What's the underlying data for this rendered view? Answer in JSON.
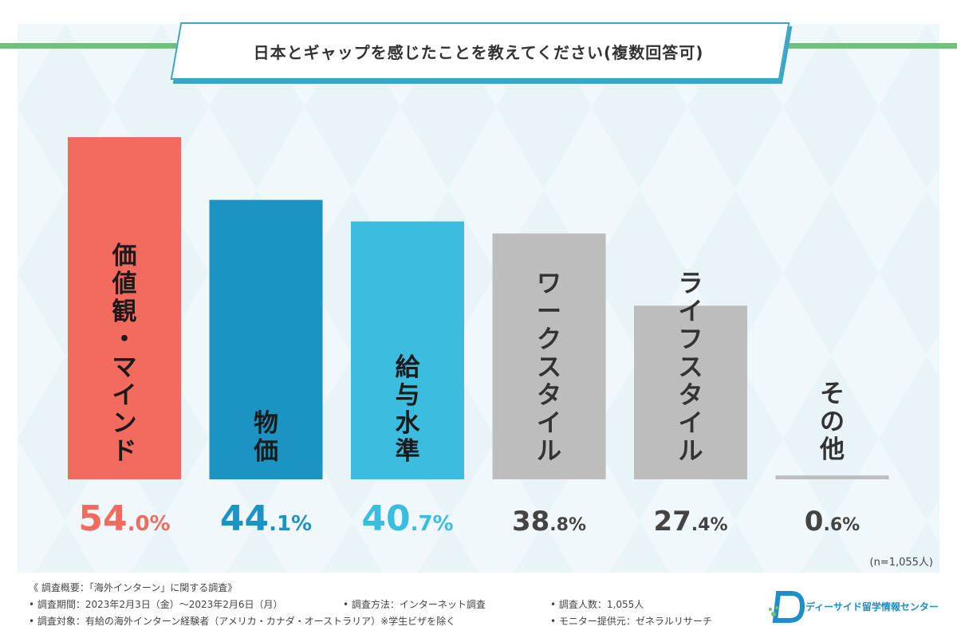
{
  "title": "日本とギャップを感じたことを教えてください(複数回答可)",
  "chart_data": {
    "type": "bar",
    "title": "日本とギャップを感じたことを教えてください(複数回答可)",
    "categories": [
      "価値観・マインド",
      "物価",
      "給与水準",
      "ワークスタイル",
      "ライフスタイル",
      "その他"
    ],
    "values": [
      54.0,
      44.1,
      40.7,
      38.8,
      27.4,
      0.6
    ],
    "value_labels": [
      "54.0%",
      "44.1%",
      "40.7%",
      "38.8%",
      "27.4%",
      "0.6%"
    ],
    "colors": [
      "#f36b5e",
      "#1b94c4",
      "#3bbde0",
      "#bdbdbd",
      "#bdbdbd",
      "#bdbdbd"
    ],
    "label_colors": [
      "#f36b5e",
      "#1b94c4",
      "#3bbde0",
      "#444444",
      "#444444",
      "#444444"
    ],
    "unit": "%",
    "ylim": [
      0,
      54
    ],
    "grid": false,
    "legend": "none"
  },
  "note": "(n=1,055人)",
  "footer": {
    "summary": "《 調査概要：「海外インターン」に関する調査》",
    "period": "• 調査期間：2023年2月3日（金）～2023年2月6日（月）",
    "method": "• 調査方法：インターネット調査",
    "count": "• 調査人数：1,055人",
    "target": "• 調査対象：有給の海外インターン経験者（アメリカ・カナダ・オーストラリア）※学生ビザを除く",
    "provider": "• モニター提供元：ゼネラルリサーチ"
  },
  "logo": {
    "text": "ディーサイド留学情報センター",
    "icon": "d-logo-icon",
    "color": "#1c8ec9"
  }
}
